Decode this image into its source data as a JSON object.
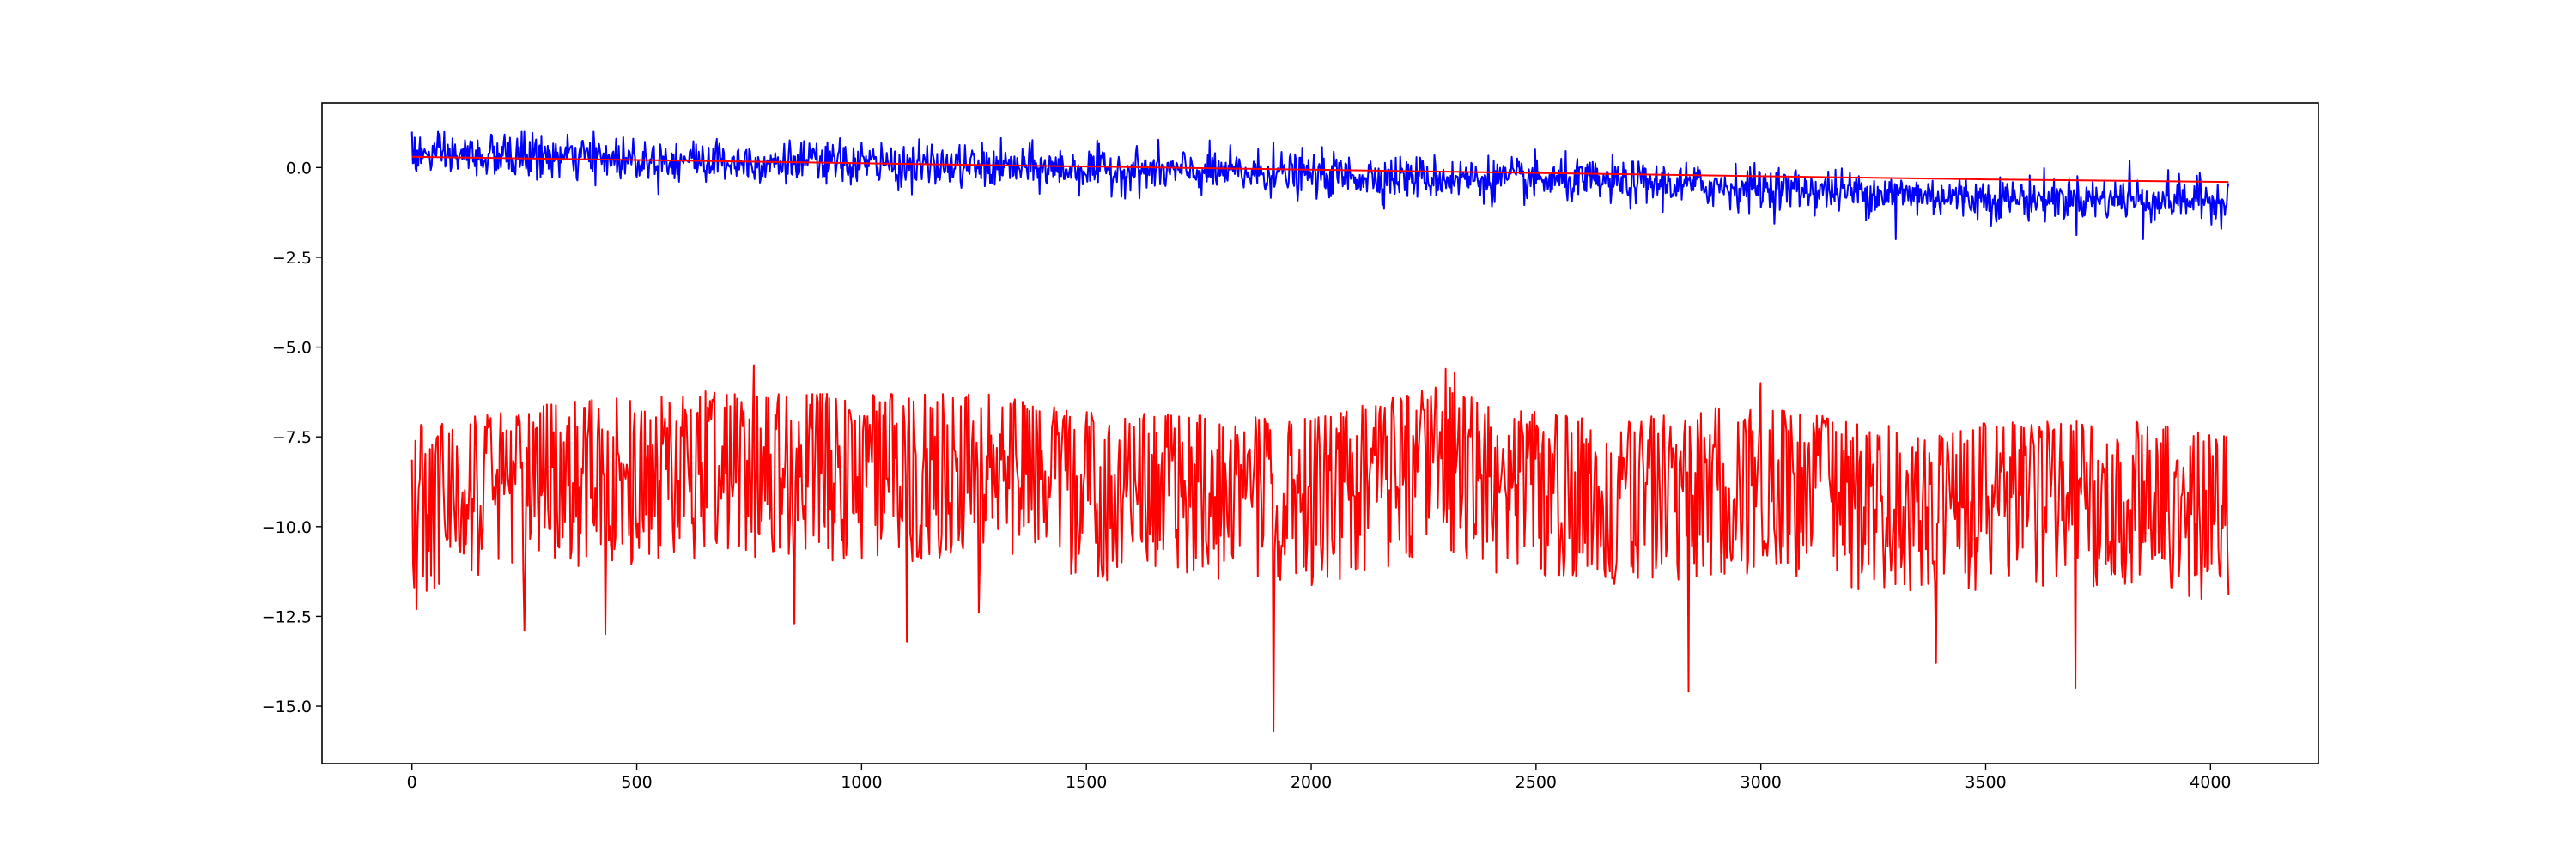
{
  "chart_data": {
    "type": "line",
    "title": "",
    "xlabel": "",
    "ylabel": "",
    "xlim": [
      -200,
      4240
    ],
    "ylim": [
      -16.6,
      1.8
    ],
    "grid": false,
    "legend": "none",
    "x_ticks": [
      0,
      500,
      1000,
      1500,
      2000,
      2500,
      3000,
      3500,
      4000
    ],
    "y_ticks": [
      0.0,
      -2.5,
      -5.0,
      -7.5,
      -10.0,
      -12.5,
      -15.0
    ],
    "x_tick_labels": [
      "0",
      "500",
      "1000",
      "1500",
      "2000",
      "2500",
      "3000",
      "3500",
      "4000"
    ],
    "y_tick_labels": [
      "0.0",
      "−2.5",
      "−5.0",
      "−7.5",
      "−10.0",
      "−12.5",
      "−15.0"
    ],
    "series": [
      {
        "color": "#0000ff",
        "style": "noisy signal",
        "x_range": [
          0,
          4040
        ],
        "trend_points": [
          [
            0,
            0.35
          ],
          [
            500,
            0.25
          ],
          [
            1000,
            0.1
          ],
          [
            1500,
            -0.05
          ],
          [
            2000,
            -0.2
          ],
          [
            2500,
            -0.35
          ],
          [
            3000,
            -0.55
          ],
          [
            3500,
            -0.85
          ],
          [
            4040,
            -0.9
          ]
        ],
        "noise_sd": 0.3,
        "min": -2.0,
        "max": 1.0,
        "peak_points": [
          [
            0,
            1.0
          ],
          [
            250,
            1.0
          ],
          [
            1000,
            0.7
          ],
          [
            1915,
            0.7
          ],
          [
            3300,
            -2.0
          ],
          [
            3820,
            0.2
          ],
          [
            3850,
            -2.0
          ]
        ]
      },
      {
        "color": "#ff0000",
        "style": "trend line",
        "x": [
          0,
          500,
          1000,
          1500,
          2000,
          2500,
          3000,
          3500,
          4040
        ],
        "values": [
          0.3,
          0.21,
          0.12,
          0.03,
          -0.06,
          -0.15,
          -0.24,
          -0.33,
          -0.4
        ]
      },
      {
        "color": "#ff0000",
        "style": "spiky signal",
        "x_range": [
          0,
          4040
        ],
        "baseline_points": [
          [
            0,
            -7.2
          ],
          [
            300,
            -6.6
          ],
          [
            600,
            -6.2
          ],
          [
            800,
            -6.3
          ],
          [
            1300,
            -6.3
          ],
          [
            1500,
            -6.8
          ],
          [
            2000,
            -7.0
          ],
          [
            2300,
            -6.0
          ],
          [
            2400,
            -6.7
          ],
          [
            2700,
            -7.0
          ],
          [
            2950,
            -6.6
          ],
          [
            3300,
            -7.2
          ],
          [
            3800,
            -7.0
          ],
          [
            4040,
            -7.5
          ]
        ],
        "min": -15.7,
        "max": -5.5,
        "dip_points": [
          [
            10,
            -12.3
          ],
          [
            250,
            -12.9
          ],
          [
            430,
            -13.0
          ],
          [
            850,
            -12.7
          ],
          [
            1100,
            -13.2
          ],
          [
            1260,
            -12.4
          ],
          [
            1915,
            -15.7
          ],
          [
            2840,
            -14.6
          ],
          [
            3390,
            -13.8
          ],
          [
            3700,
            -14.5
          ],
          [
            4040,
            -11.9
          ]
        ],
        "peak_points": [
          [
            760,
            -5.5
          ],
          [
            2300,
            -5.6
          ],
          [
            2320,
            -5.7
          ],
          [
            3000,
            -6.0
          ]
        ]
      }
    ]
  }
}
